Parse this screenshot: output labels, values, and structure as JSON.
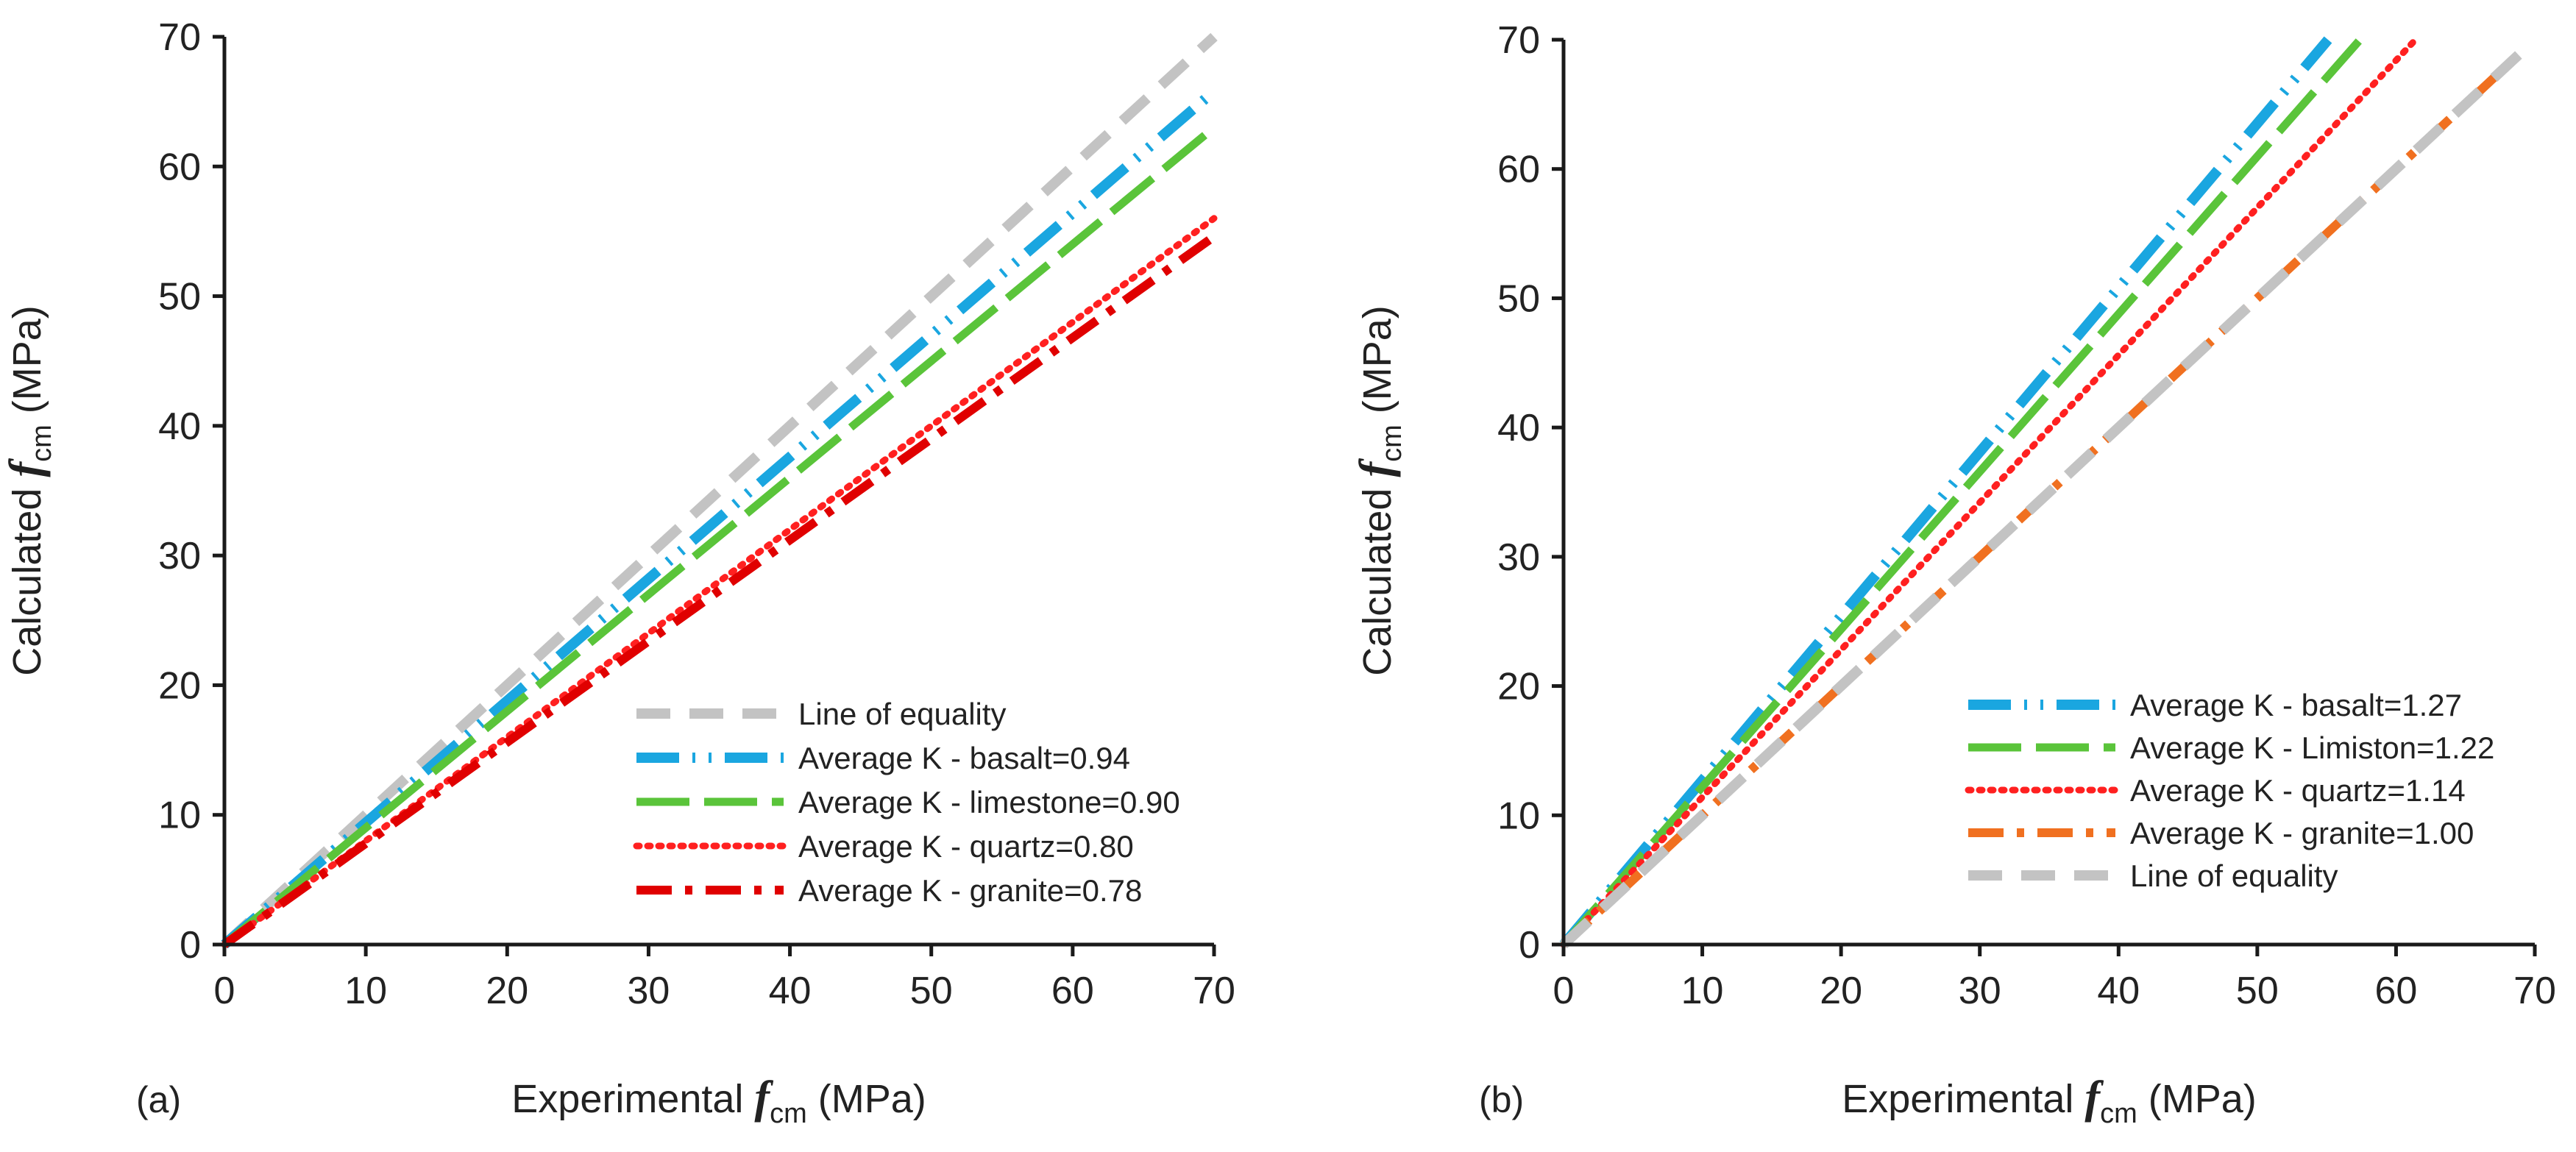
{
  "chart_data": [
    {
      "panel_label": "(a)",
      "type": "line",
      "xlabel": {
        "prefix": "Experimental",
        "symbol": "f",
        "sub": "cm",
        "unit": "(MPa)"
      },
      "ylabel": {
        "prefix": "Calculated",
        "symbol": "f",
        "sub": "cm",
        "unit": "(MPa)"
      },
      "xlim": [
        0,
        70
      ],
      "ylim": [
        0,
        70
      ],
      "xticks": [
        0,
        10,
        20,
        30,
        40,
        50,
        60,
        70
      ],
      "yticks": [
        0,
        10,
        20,
        30,
        40,
        50,
        60,
        70
      ],
      "grid": false,
      "legend_position": "bottom-right",
      "series": [
        {
          "name": "Line of equality",
          "style": "dash",
          "color": "#c3c3c3",
          "x": [
            0,
            70
          ],
          "y": [
            0,
            70
          ]
        },
        {
          "name": "Average K - basalt=0.94",
          "style": "dash-dot-dot",
          "color": "#1aa6e0",
          "x": [
            0,
            70
          ],
          "y": [
            0,
            65.8
          ]
        },
        {
          "name": "Average K - limestone=0.90",
          "style": "long-dash",
          "color": "#5ac43a",
          "x": [
            0,
            70
          ],
          "y": [
            0,
            63
          ]
        },
        {
          "name": "Average K - quartz=0.80",
          "style": "dot",
          "color": "#ff2020",
          "x": [
            0,
            70
          ],
          "y": [
            0,
            56
          ]
        },
        {
          "name": "Average K - granite=0.78",
          "style": "dash-dot",
          "color": "#e00000",
          "x": [
            0,
            70
          ],
          "y": [
            0,
            54.6
          ]
        }
      ]
    },
    {
      "panel_label": "(b)",
      "type": "line",
      "xlabel": {
        "prefix": "Experimental",
        "symbol": "f",
        "sub": "cm",
        "unit": "(MPa)"
      },
      "ylabel": {
        "prefix": "Calculated",
        "symbol": "f",
        "sub": "cm",
        "unit": "(MPa)"
      },
      "xlim": [
        0,
        70
      ],
      "ylim": [
        0,
        70
      ],
      "xticks": [
        0,
        10,
        20,
        30,
        40,
        50,
        60,
        70
      ],
      "yticks": [
        0,
        10,
        20,
        30,
        40,
        50,
        60,
        70
      ],
      "grid": false,
      "legend_position": "bottom-right",
      "series": [
        {
          "name": "Average K - basalt=1.27",
          "style": "dash-dot-dot",
          "color": "#1aa6e0",
          "x": [
            0,
            55.1
          ],
          "y": [
            0,
            70
          ]
        },
        {
          "name": "Average K - Limiston=1.22",
          "style": "long-dash",
          "color": "#5ac43a",
          "x": [
            0,
            57.4
          ],
          "y": [
            0,
            70
          ]
        },
        {
          "name": "Average K - quartz=1.14",
          "style": "dot",
          "color": "#ff2020",
          "x": [
            0,
            61.4
          ],
          "y": [
            0,
            70
          ]
        },
        {
          "name": "Average K - granite=1.00",
          "style": "dash-dot",
          "color": "#f07020",
          "x": [
            0,
            69
          ],
          "y": [
            0,
            69
          ]
        },
        {
          "name": "Line of equality",
          "style": "dash",
          "color": "#c3c3c3",
          "x": [
            0,
            69
          ],
          "y": [
            0,
            69
          ]
        }
      ]
    }
  ]
}
